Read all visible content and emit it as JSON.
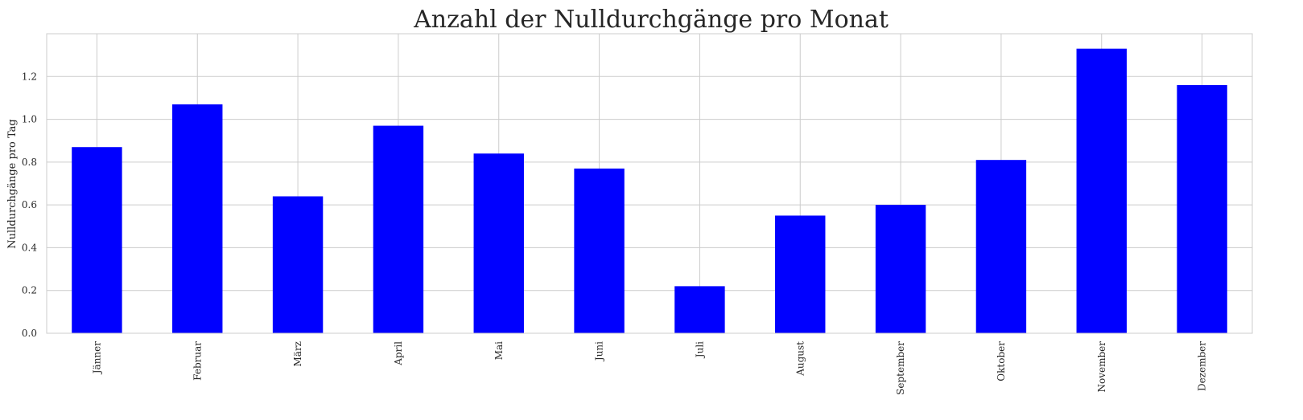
{
  "chart_data": {
    "type": "bar",
    "title": "Anzahl der Nulldurchgänge pro Monat",
    "xlabel": "",
    "ylabel": "Nulldurchgänge pro Tag",
    "categories": [
      "Jänner",
      "Februar",
      "März",
      "April",
      "Mai",
      "Juni",
      "Juli",
      "August",
      "September",
      "Oktober",
      "November",
      "Dezember"
    ],
    "values": [
      0.87,
      1.07,
      0.64,
      0.97,
      0.84,
      0.77,
      0.22,
      0.55,
      0.6,
      0.81,
      1.33,
      1.16
    ],
    "ylim": [
      0,
      1.4
    ],
    "yticks": [
      "0.0",
      "0.2",
      "0.4",
      "0.6",
      "0.8",
      "1.0",
      "1.2"
    ],
    "bar_color": "#0000ff",
    "grid": true,
    "grid_color": "#cccccc",
    "background": "#ffffff"
  }
}
